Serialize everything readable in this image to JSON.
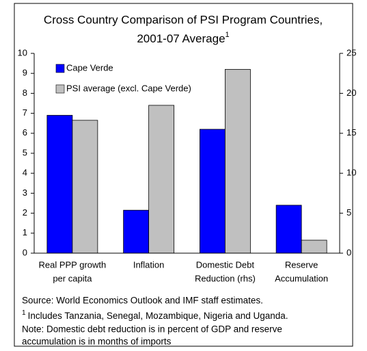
{
  "chart_data": {
    "type": "bar",
    "title": [
      "Cross Country Comparison of PSI Program Countries,",
      "2001-07 Average"
    ],
    "title_marker": "1",
    "categories": [
      [
        "Real PPP growth",
        "per capita"
      ],
      [
        "Inflation"
      ],
      [
        "Domestic Debt",
        "Reduction (rhs)"
      ],
      [
        "Reserve",
        "Accumulation"
      ]
    ],
    "category_axis": [
      "y",
      "y",
      "y2",
      "y"
    ],
    "series": [
      {
        "name": "Cape Verde",
        "color": "#0000ff",
        "values": [
          6.9,
          2.15,
          15.5,
          2.4
        ]
      },
      {
        "name": "PSI average (excl. Cape Verde)",
        "color": "#c0c0c0",
        "values": [
          6.65,
          7.4,
          23,
          0.65
        ]
      }
    ],
    "ylim": [
      0,
      10
    ],
    "yticks": [
      0,
      1,
      2,
      3,
      4,
      5,
      6,
      7,
      8,
      9,
      10
    ],
    "y2lim": [
      0,
      25
    ],
    "y2ticks": [
      0,
      5,
      10,
      15,
      20,
      25
    ],
    "grid": false,
    "legend": "top-left"
  },
  "notes": {
    "source": "Source: World Economics Outlook and IMF staff estimates.",
    "footnote_marker": "1",
    "footnote": "Includes Tanzania, Senegal, Mozambique, Nigeria and Uganda.",
    "note_lines": [
      "Note: Domestic debt reduction is in percent of GDP and reserve",
      "accumulation is in months of imports"
    ]
  }
}
